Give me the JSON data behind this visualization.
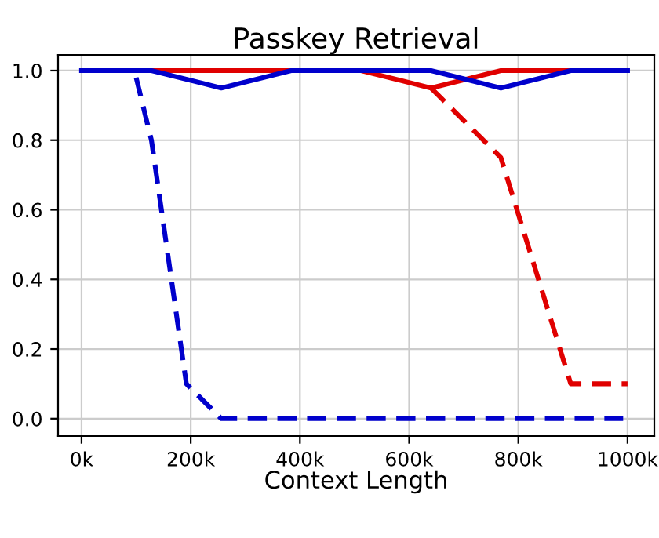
{
  "chart_data": {
    "type": "line",
    "title": "Passkey Retrieval",
    "xlabel": "Context Length",
    "series": [
      {
        "color": "#e00000",
        "line_style": "solid",
        "x": [
          128,
          256,
          384,
          512,
          640,
          768,
          896
        ],
        "values": [
          1,
          1,
          1,
          1,
          0.95,
          1,
          1
        ]
      },
      {
        "color": "#e00000",
        "line_style": "dashed",
        "x": [
          640,
          768,
          896,
          1000
        ],
        "values": [
          0.95,
          0.75,
          0.1,
          0.1
        ]
      },
      {
        "color": "#0000cc",
        "line_style": "solid",
        "x": [
          0,
          128,
          256,
          384,
          512,
          640,
          768,
          896,
          1000
        ],
        "values": [
          1,
          1,
          0.95,
          1,
          1,
          1,
          0.95,
          1,
          1
        ]
      },
      {
        "color": "#0000cc",
        "line_style": "dashed",
        "x": [
          100,
          128,
          192,
          256,
          384,
          512,
          640,
          768,
          896,
          992
        ],
        "values": [
          0.98,
          0.8,
          0.1,
          0,
          0,
          0,
          0,
          0,
          0,
          0
        ]
      }
    ],
    "xlim": [
      -43,
      1049
    ],
    "xticks": [
      {
        "value": 0,
        "label": "0k"
      },
      {
        "value": 200,
        "label": "200k"
      },
      {
        "value": 400,
        "label": "400k"
      },
      {
        "value": 600,
        "label": "600k"
      },
      {
        "value": 800,
        "label": "800k"
      },
      {
        "value": 1000,
        "label": "1000k"
      }
    ],
    "ylim": [
      -0.05,
      1.045
    ],
    "yticks": [
      {
        "value": 0,
        "label": "0.0"
      },
      {
        "value": 0.2,
        "label": "0.2"
      },
      {
        "value": 0.4,
        "label": "0.4"
      },
      {
        "value": 0.6,
        "label": "0.6"
      },
      {
        "value": 0.8,
        "label": "0.8"
      },
      {
        "value": 1,
        "label": "1.0"
      }
    ],
    "grid": true,
    "marker": "none"
  }
}
